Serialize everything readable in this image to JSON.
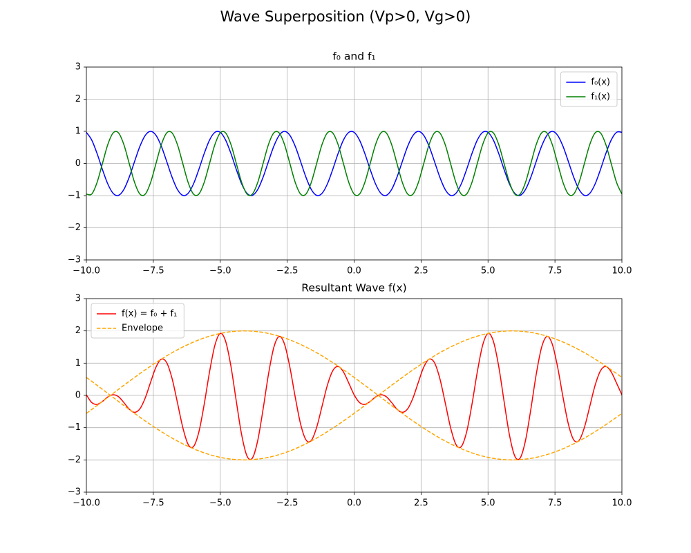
{
  "title": "Wave Superposition (Vp>0, Vg>0)",
  "chart_data": [
    {
      "type": "line",
      "title": "f₀ and f₁",
      "legend": "upper right",
      "grid": true,
      "xlim": [
        -10,
        10
      ],
      "ylim": [
        -3,
        3
      ],
      "xticks": [
        {
          "value": -10,
          "label": "−10.0"
        },
        {
          "value": -7.5,
          "label": "−7.5"
        },
        {
          "value": -5,
          "label": "−5.0"
        },
        {
          "value": -2.5,
          "label": "−2.5"
        },
        {
          "value": 0,
          "label": "0.0"
        },
        {
          "value": 2.5,
          "label": "2.5"
        },
        {
          "value": 5,
          "label": "5.0"
        },
        {
          "value": 7.5,
          "label": "7.5"
        },
        {
          "value": 10,
          "label": "10.0"
        }
      ],
      "yticks": [
        {
          "value": -3,
          "label": "−3"
        },
        {
          "value": -2,
          "label": "−2"
        },
        {
          "value": -1,
          "label": "−1"
        },
        0,
        1,
        2,
        3
      ],
      "x": [
        -10,
        -9.8,
        -9.6,
        -9.4,
        -9.2,
        -9,
        -8.8,
        -8.6,
        -8.4,
        -8.2,
        -8,
        -7.8,
        -7.6,
        -7.4,
        -7.2,
        -7,
        -6.8,
        -6.6,
        -6.4,
        -6.2,
        -6,
        -5.8,
        -5.6,
        -5.4,
        -5.2,
        -5,
        -4.8,
        -4.6,
        -4.4,
        -4.2,
        -4,
        -3.8,
        -3.6,
        -3.4,
        -3.2,
        -3,
        -2.8,
        -2.6,
        -2.4,
        -2.2,
        -2,
        -1.8,
        -1.6,
        -1.4,
        -1.2,
        -1,
        -0.8,
        -0.6,
        -0.4,
        -0.2,
        0,
        0.2,
        0.4,
        0.6,
        0.8,
        1,
        1.2,
        1.4,
        1.6,
        1.8,
        2,
        2.2,
        2.4,
        2.6,
        2.8,
        3,
        3.2,
        3.4,
        3.6,
        3.8,
        4,
        4.2,
        4.4,
        4.6,
        4.8,
        5,
        5.2,
        5.4,
        5.6,
        5.8,
        6,
        6.2,
        6.4,
        6.6,
        6.8,
        7,
        7.2,
        7.4,
        7.6,
        7.8,
        8,
        8.2,
        8.4,
        8.6,
        8.8,
        9,
        9.2,
        9.4,
        9.6,
        9.8,
        10
      ],
      "series": [
        {
          "name": "f₀(x)",
          "color": "#0000ff",
          "linestyle": "solid",
          "values": [
            0.969,
            0.729,
            0.309,
            -0.187,
            -0.637,
            -0.93,
            -0.992,
            -0.809,
            -0.426,
            0.063,
            0.536,
            0.876,
            1,
            0.876,
            0.536,
            0.063,
            -0.426,
            -0.809,
            -0.992,
            -0.93,
            -0.637,
            -0.187,
            0.309,
            0.729,
            0.969,
            0.969,
            0.729,
            0.309,
            -0.187,
            -0.637,
            -0.93,
            -0.992,
            -0.809,
            -0.426,
            0.063,
            0.536,
            0.876,
            1,
            0.876,
            0.536,
            0.063,
            -0.426,
            -0.809,
            -0.992,
            -0.93,
            -0.637,
            -0.187,
            0.309,
            0.729,
            0.969,
            0.969,
            0.729,
            0.309,
            -0.187,
            -0.637,
            -0.93,
            -0.992,
            -0.809,
            -0.426,
            0.063,
            0.536,
            0.876,
            1,
            0.876,
            0.536,
            0.063,
            -0.426,
            -0.809,
            -0.992,
            -0.93,
            -0.637,
            -0.187,
            0.309,
            0.729,
            0.969,
            0.969,
            0.729,
            0.309,
            -0.187,
            -0.637,
            -0.93,
            -0.992,
            -0.809,
            -0.426,
            0.063,
            0.536,
            0.876,
            1,
            0.876,
            0.536,
            0.063,
            -0.426,
            -0.809,
            -0.992,
            -0.93,
            -0.637,
            -0.187,
            0.309,
            0.729,
            0.969,
            0.969
          ]
        },
        {
          "name": "f₁(x)",
          "color": "#008000",
          "linestyle": "solid",
          "values": [
            -0.951,
            -0.951,
            -0.588,
            0,
            0.588,
            0.951,
            0.951,
            0.588,
            0,
            -0.588,
            -0.951,
            -0.951,
            -0.588,
            0,
            0.588,
            0.951,
            0.951,
            0.588,
            0,
            -0.588,
            -0.951,
            -0.951,
            -0.588,
            0,
            0.588,
            0.951,
            0.951,
            0.588,
            0,
            -0.588,
            -0.951,
            -0.951,
            -0.588,
            0,
            0.588,
            0.951,
            0.951,
            0.588,
            0,
            -0.588,
            -0.951,
            -0.951,
            -0.588,
            0,
            0.588,
            0.951,
            0.951,
            0.588,
            0,
            -0.588,
            -0.951,
            -0.951,
            -0.588,
            0,
            0.588,
            0.951,
            0.951,
            0.588,
            0,
            -0.588,
            -0.951,
            -0.951,
            -0.588,
            0,
            0.588,
            0.951,
            0.951,
            0.588,
            0,
            -0.588,
            -0.951,
            -0.951,
            -0.588,
            0,
            0.588,
            0.951,
            0.951,
            0.588,
            0,
            -0.588,
            -0.951,
            -0.951,
            -0.588,
            0,
            0.588,
            0.951,
            0.951,
            0.588,
            0,
            -0.588,
            -0.951,
            -0.951,
            -0.588,
            0,
            0.588,
            0.951,
            0.951,
            0.588,
            0,
            -0.588,
            -0.951
          ]
        }
      ]
    },
    {
      "type": "line",
      "title": "Resultant Wave f(x)",
      "legend": "upper left",
      "grid": true,
      "xlim": [
        -10,
        10
      ],
      "ylim": [
        -3,
        3
      ],
      "xticks": [
        {
          "value": -10,
          "label": "−10.0"
        },
        {
          "value": -7.5,
          "label": "−7.5"
        },
        {
          "value": -5,
          "label": "−5.0"
        },
        {
          "value": -2.5,
          "label": "−2.5"
        },
        {
          "value": 0,
          "label": "0.0"
        },
        {
          "value": 2.5,
          "label": "2.5"
        },
        {
          "value": 5,
          "label": "5.0"
        },
        {
          "value": 7.5,
          "label": "7.5"
        },
        {
          "value": 10,
          "label": "10.0"
        }
      ],
      "yticks": [
        {
          "value": -3,
          "label": "−3"
        },
        {
          "value": -2,
          "label": "−2"
        },
        {
          "value": -1,
          "label": "−1"
        },
        0,
        1,
        2,
        3
      ],
      "x": [
        -10,
        -9.8,
        -9.6,
        -9.4,
        -9.2,
        -9,
        -8.8,
        -8.6,
        -8.4,
        -8.2,
        -8,
        -7.8,
        -7.6,
        -7.4,
        -7.2,
        -7,
        -6.8,
        -6.6,
        -6.4,
        -6.2,
        -6,
        -5.8,
        -5.6,
        -5.4,
        -5.2,
        -5,
        -4.8,
        -4.6,
        -4.4,
        -4.2,
        -4,
        -3.8,
        -3.6,
        -3.4,
        -3.2,
        -3,
        -2.8,
        -2.6,
        -2.4,
        -2.2,
        -2,
        -1.8,
        -1.6,
        -1.4,
        -1.2,
        -1,
        -0.8,
        -0.6,
        -0.4,
        -0.2,
        0,
        0.2,
        0.4,
        0.6,
        0.8,
        1,
        1.2,
        1.4,
        1.6,
        1.8,
        2,
        2.2,
        2.4,
        2.6,
        2.8,
        3,
        3.2,
        3.4,
        3.6,
        3.8,
        4,
        4.2,
        4.4,
        4.6,
        4.8,
        5,
        5.2,
        5.4,
        5.6,
        5.8,
        6,
        6.2,
        6.4,
        6.6,
        6.8,
        7,
        7.2,
        7.4,
        7.6,
        7.8,
        8,
        8.2,
        8.4,
        8.6,
        8.8,
        9,
        9.2,
        9.4,
        9.6,
        9.8,
        10
      ],
      "series": [
        {
          "name": "f(x) = f₀ + f₁",
          "color": "#ff0000",
          "linestyle": "solid",
          "values": [
            0.018,
            -0.222,
            -0.279,
            -0.187,
            -0.049,
            0.021,
            -0.041,
            -0.221,
            -0.426,
            -0.525,
            -0.415,
            -0.075,
            0.412,
            0.876,
            1.124,
            1.014,
            0.525,
            -0.221,
            -0.992,
            -1.518,
            -1.588,
            -1.138,
            -0.279,
            0.729,
            1.557,
            1.92,
            1.68,
            0.897,
            -0.187,
            -1.225,
            -1.881,
            -1.943,
            -1.397,
            -0.426,
            0.651,
            1.487,
            1.827,
            1.588,
            0.876,
            -0.052,
            -0.888,
            -1.377,
            -1.397,
            -0.992,
            -0.342,
            0.314,
            0.764,
            0.897,
            0.729,
            0.381,
            0.018,
            -0.222,
            -0.279,
            -0.187,
            -0.049,
            0.021,
            -0.041,
            -0.221,
            -0.426,
            -0.525,
            -0.415,
            -0.075,
            0.412,
            0.876,
            1.124,
            1.014,
            0.525,
            -0.221,
            -0.992,
            -1.518,
            -1.588,
            -1.138,
            -0.279,
            0.729,
            1.557,
            1.92,
            1.68,
            0.897,
            -0.187,
            -1.225,
            -1.881,
            -1.943,
            -1.397,
            -0.426,
            0.651,
            1.487,
            1.827,
            1.588,
            0.876,
            -0.052,
            -0.888,
            -1.377,
            -1.397,
            -0.992,
            -0.342,
            0.314,
            0.764,
            0.897,
            0.729,
            0.381,
            0.018
          ]
        },
        {
          "name": "Envelope",
          "color": "#ffa500",
          "linestyle": "dashed",
          "values": [
            -0.558,
            -0.436,
            -0.313,
            -0.188,
            -0.063,
            0.063,
            0.188,
            0.313,
            0.436,
            0.558,
            0.677,
            0.794,
            0.908,
            1.018,
            1.124,
            1.226,
            1.323,
            1.414,
            1.5,
            1.58,
            1.654,
            1.721,
            1.782,
            1.836,
            1.882,
            1.921,
            1.952,
            1.975,
            1.991,
            1.999,
            1.999,
            1.991,
            1.975,
            1.952,
            1.921,
            1.882,
            1.836,
            1.782,
            1.721,
            1.654,
            1.58,
            1.5,
            1.414,
            1.323,
            1.226,
            1.124,
            1.018,
            0.908,
            0.794,
            0.677,
            0.558,
            0.436,
            0.313,
            0.188,
            0.063,
            -0.063,
            -0.188,
            -0.313,
            -0.436,
            -0.558,
            -0.677,
            -0.794,
            -0.908,
            -1.018,
            -1.124,
            -1.226,
            -1.323,
            -1.414,
            -1.5,
            -1.58,
            -1.654,
            -1.721,
            -1.782,
            -1.836,
            -1.882,
            -1.921,
            -1.952,
            -1.975,
            -1.991,
            -1.999,
            -1.999,
            -1.991,
            -1.975,
            -1.952,
            -1.921,
            -1.882,
            -1.836,
            -1.782,
            -1.721,
            -1.654,
            -1.58,
            -1.5,
            -1.414,
            -1.323,
            -1.226,
            -1.124,
            -1.018,
            -0.908,
            -0.794,
            -0.677,
            -0.558
          ]
        },
        {
          "color": "#ffa500",
          "linestyle": "dashed",
          "values": [
            0.558,
            0.436,
            0.313,
            0.188,
            0.063,
            -0.063,
            -0.188,
            -0.313,
            -0.436,
            -0.558,
            -0.677,
            -0.794,
            -0.908,
            -1.018,
            -1.124,
            -1.226,
            -1.323,
            -1.414,
            -1.5,
            -1.58,
            -1.654,
            -1.721,
            -1.782,
            -1.836,
            -1.882,
            -1.921,
            -1.952,
            -1.975,
            -1.991,
            -1.999,
            -1.999,
            -1.991,
            -1.975,
            -1.952,
            -1.921,
            -1.882,
            -1.836,
            -1.782,
            -1.721,
            -1.654,
            -1.58,
            -1.5,
            -1.414,
            -1.323,
            -1.226,
            -1.124,
            -1.018,
            -0.908,
            -0.794,
            -0.677,
            -0.558,
            -0.436,
            -0.313,
            -0.188,
            -0.063,
            0.063,
            0.188,
            0.313,
            0.436,
            0.558,
            0.677,
            0.794,
            0.908,
            1.018,
            1.124,
            1.226,
            1.323,
            1.414,
            1.5,
            1.58,
            1.654,
            1.721,
            1.782,
            1.836,
            1.882,
            1.921,
            1.952,
            1.975,
            1.991,
            1.999,
            1.999,
            1.991,
            1.975,
            1.952,
            1.921,
            1.882,
            1.836,
            1.782,
            1.721,
            1.654,
            1.58,
            1.5,
            1.414,
            1.323,
            1.226,
            1.124,
            1.018,
            0.908,
            0.794,
            0.677,
            0.558
          ]
        }
      ]
    }
  ]
}
